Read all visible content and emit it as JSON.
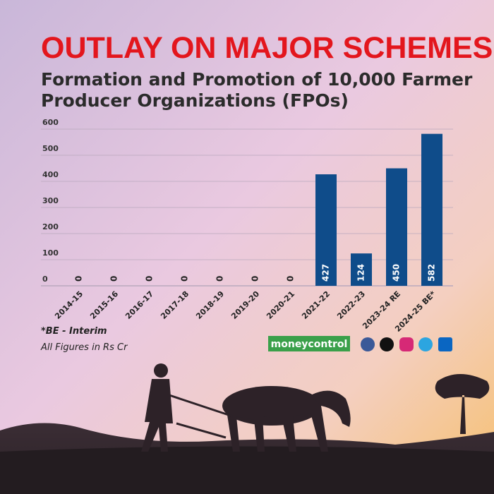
{
  "chart_data": {
    "type": "bar",
    "title": "OUTLAY ON MAJOR SCHEMES",
    "subtitle": "Formation and Promotion of 10,000 Farmer Producer Organizations (FPOs)",
    "categories": [
      "2014-15",
      "2015-16",
      "2016-17",
      "2017-18",
      "2018-19",
      "2019-20",
      "2020-21",
      "2021-22",
      "2022-23",
      "2023-24 RE",
      "2024-25 BE*"
    ],
    "values": [
      0,
      0,
      0,
      0,
      0,
      0,
      0,
      427,
      124,
      450,
      582
    ],
    "color": "#0f4c8a",
    "ylim": [
      0,
      600
    ],
    "yticks": [
      0,
      100,
      200,
      300,
      400,
      500,
      600
    ],
    "grid": true
  },
  "notes": [
    "*BE - Interim",
    "All Figures in Rs Cr"
  ],
  "brand": "moneycontrol"
}
